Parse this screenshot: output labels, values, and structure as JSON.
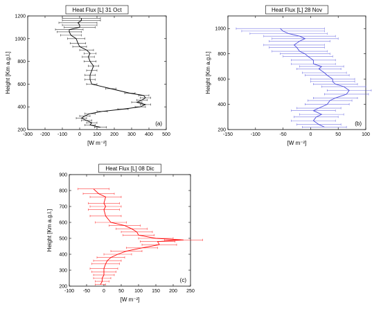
{
  "chart_data": [
    {
      "type": "line",
      "title": "Heat Flux [L] 31 Oct",
      "xlabel": "[W m⁻²]",
      "ylabel": "Height [Km a.g.l.]",
      "panel_label": "(a)",
      "color": "#000000",
      "xlim": [
        -300,
        500
      ],
      "ylim": [
        200,
        1200
      ],
      "xticks": [
        -300,
        -200,
        -100,
        0,
        100,
        200,
        300,
        400,
        500
      ],
      "yticks": [
        200,
        400,
        600,
        800,
        1000,
        1200
      ],
      "series": [
        {
          "x": [
            120,
            60,
            70,
            40,
            10,
            30,
            60,
            130,
            250,
            350,
            380,
            330,
            360,
            380,
            370,
            290,
            180,
            70,
            60,
            60,
            70,
            80,
            60,
            50,
            60,
            40,
            0,
            -10,
            -20,
            -50,
            -60,
            -60,
            0,
            0,
            -10,
            10,
            10
          ],
          "y": [
            220,
            240,
            260,
            280,
            300,
            320,
            340,
            360,
            380,
            400,
            420,
            440,
            460,
            480,
            500,
            520,
            560,
            600,
            640,
            680,
            720,
            760,
            800,
            840,
            870,
            900,
            930,
            960,
            1000,
            1030,
            1060,
            1080,
            1100,
            1120,
            1140,
            1160,
            1180
          ],
          "err": [
            35,
            30,
            30,
            30,
            30,
            30,
            30,
            30,
            30,
            30,
            30,
            30,
            30,
            30,
            30,
            30,
            30,
            30,
            30,
            30,
            30,
            30,
            35,
            35,
            35,
            40,
            40,
            45,
            50,
            60,
            70,
            80,
            90,
            100,
            110,
            110,
            110
          ]
        }
      ]
    },
    {
      "type": "line",
      "title": "Heat Flux [L] 28 Nov",
      "xlabel": "[W m⁻²]",
      "ylabel": "Height [Km a.g.l.]",
      "panel_label": "(b)",
      "color": "#4a4adb",
      "xlim": [
        -150,
        100
      ],
      "ylim": [
        200,
        1100
      ],
      "xticks": [
        -150,
        -100,
        -50,
        0,
        50,
        100
      ],
      "yticks": [
        200,
        400,
        600,
        800,
        1000
      ],
      "series": [
        {
          "x": [
            25,
            15,
            5,
            10,
            20,
            5,
            15,
            30,
            35,
            45,
            65,
            70,
            60,
            45,
            40,
            40,
            30,
            25,
            15,
            20,
            5,
            5,
            -5,
            -10,
            -20,
            -25,
            -30,
            -20,
            -10,
            -20,
            -40,
            -50,
            -55
          ],
          "y": [
            220,
            240,
            270,
            300,
            320,
            350,
            370,
            400,
            430,
            450,
            480,
            510,
            540,
            560,
            580,
            600,
            630,
            650,
            680,
            700,
            720,
            750,
            780,
            800,
            820,
            850,
            870,
            900,
            920,
            940,
            960,
            980,
            1000
          ],
          "err": [
            40,
            40,
            40,
            40,
            40,
            40,
            40,
            40,
            40,
            40,
            40,
            40,
            40,
            40,
            40,
            40,
            40,
            40,
            40,
            40,
            40,
            40,
            45,
            45,
            50,
            50,
            55,
            55,
            60,
            65,
            70,
            75,
            80
          ]
        }
      ]
    },
    {
      "type": "line",
      "title": "Heat Flux [L] 08 Dic",
      "xlabel": "[W m⁻²]",
      "ylabel": "Height [Km a.g.l.]",
      "panel_label": "(c)",
      "color": "#ff0000",
      "xlim": [
        -100,
        250
      ],
      "ylim": [
        200,
        900
      ],
      "xticks": [
        -100,
        -50,
        0,
        50,
        100,
        150,
        200,
        250
      ],
      "yticks": [
        200,
        300,
        400,
        500,
        600,
        700,
        800,
        900
      ],
      "series": [
        {
          "x": [
            -10,
            -5,
            -5,
            0,
            0,
            0,
            5,
            10,
            20,
            40,
            65,
            110,
            160,
            155,
            230,
            150,
            100,
            95,
            80,
            60,
            20,
            5,
            0,
            5,
            0,
            5,
            -15,
            -30
          ],
          "y": [
            210,
            230,
            250,
            270,
            290,
            310,
            340,
            360,
            380,
            400,
            420,
            440,
            460,
            480,
            490,
            500,
            520,
            540,
            560,
            580,
            600,
            640,
            680,
            700,
            720,
            760,
            780,
            810
          ],
          "err": [
            15,
            20,
            25,
            30,
            35,
            40,
            40,
            40,
            40,
            40,
            45,
            45,
            50,
            50,
            55,
            50,
            45,
            45,
            45,
            45,
            45,
            45,
            45,
            45,
            45,
            45,
            45,
            45
          ]
        }
      ]
    }
  ]
}
